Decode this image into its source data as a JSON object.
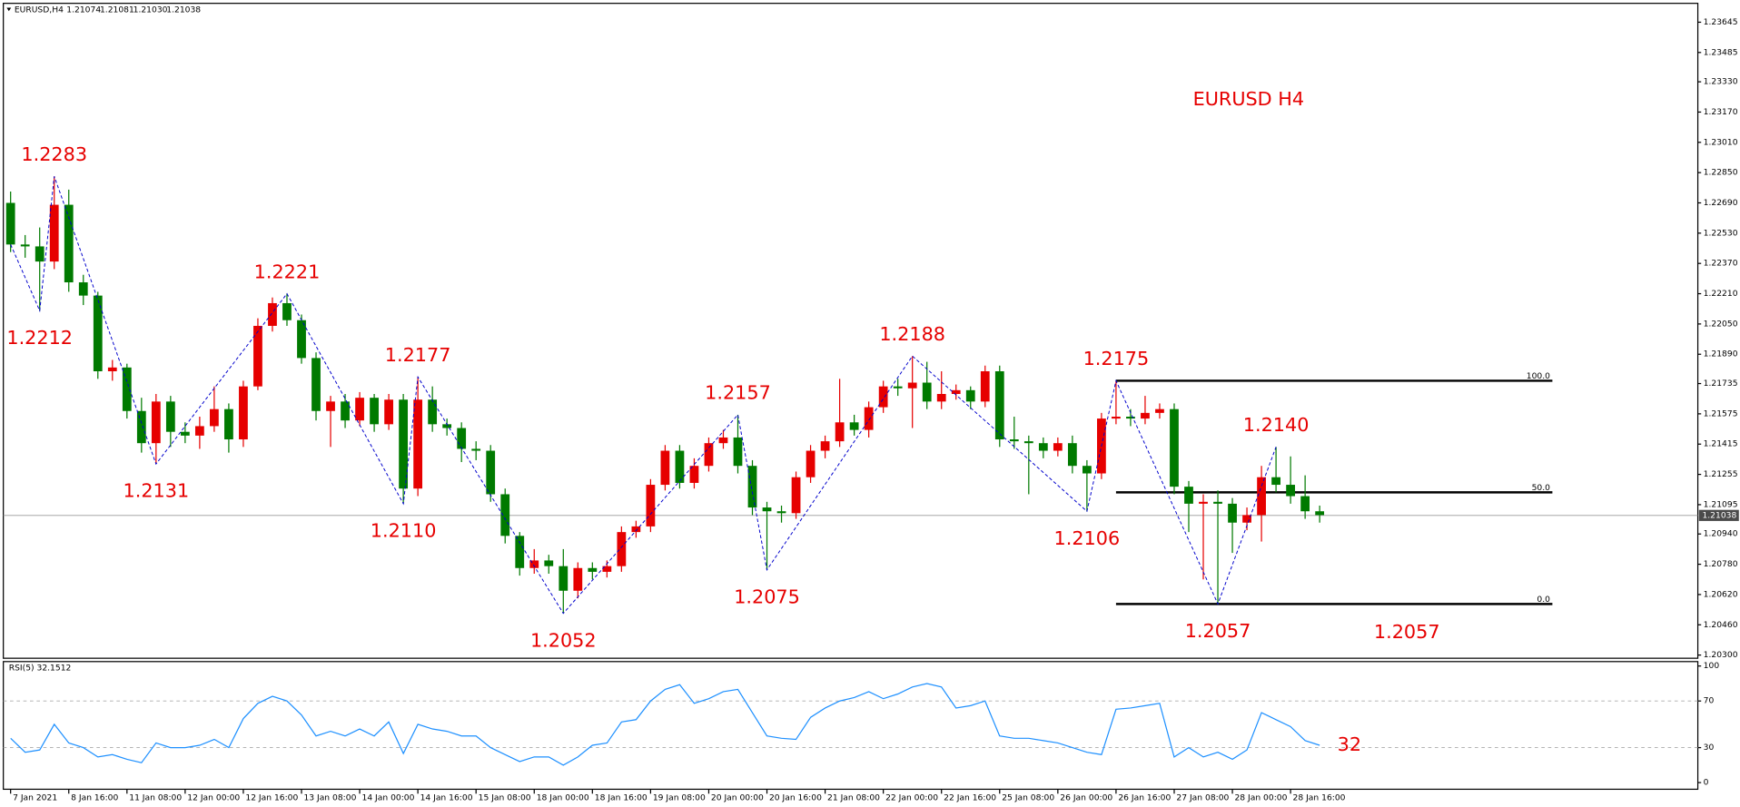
{
  "header": {
    "symbol": "EURUSD,H4",
    "quote": [
      "1.21074",
      "1.21081",
      "1.21030",
      "1.21038"
    ]
  },
  "chart_data": {
    "type": "candlestick",
    "title": "EURUSD H4",
    "categories": [
      "7 Jan 2021",
      null,
      null,
      null,
      "8 Jan 16:00",
      null,
      null,
      null,
      "11 Jan 08:00",
      null,
      null,
      null,
      "12 Jan 00:00",
      null,
      null,
      null,
      "12 Jan 16:00",
      null,
      null,
      null,
      "13 Jan 08:00",
      null,
      null,
      null,
      "14 Jan 00:00",
      null,
      null,
      null,
      "14 Jan 16:00",
      null,
      null,
      null,
      "15 Jan 08:00",
      null,
      null,
      null,
      "18 Jan 00:00",
      null,
      null,
      null,
      "18 Jan 16:00",
      null,
      null,
      null,
      "19 Jan 08:00",
      null,
      null,
      null,
      "20 Jan 00:00",
      null,
      null,
      null,
      "20 Jan 16:00",
      null,
      null,
      null,
      "21 Jan 08:00",
      null,
      null,
      null,
      "22 Jan 00:00",
      null,
      null,
      null,
      "22 Jan 16:00",
      null,
      null,
      null,
      "25 Jan 08:00",
      null,
      null,
      null,
      "26 Jan 00:00",
      null,
      null,
      null,
      "26 Jan 16:00",
      null,
      null,
      null,
      "27 Jan 08:00",
      null,
      null,
      null,
      "28 Jan 00:00",
      null,
      null,
      null,
      "28 Jan 16:00",
      null,
      null
    ],
    "open": [
      1.2269,
      1.2247,
      1.2246,
      1.2238,
      1.2268,
      1.2227,
      1.222,
      1.218,
      1.2182,
      1.2159,
      1.2142,
      1.2164,
      1.2148,
      1.2146,
      1.2151,
      1.216,
      1.2144,
      1.2172,
      1.2204,
      1.2216,
      1.2207,
      1.2187,
      1.2159,
      1.2164,
      1.2154,
      1.2166,
      1.2152,
      1.2165,
      1.2118,
      1.2165,
      1.2152,
      1.215,
      1.2139,
      1.2138,
      1.2115,
      1.2093,
      1.2076,
      1.208,
      1.2077,
      1.2064,
      1.2076,
      1.2074,
      1.2077,
      1.2095,
      1.2098,
      1.212,
      1.2138,
      1.2121,
      1.213,
      1.2142,
      1.2145,
      1.213,
      1.2108,
      1.2106,
      1.2105,
      1.2124,
      1.2138,
      1.2143,
      1.2153,
      1.2149,
      1.2161,
      1.2172,
      1.2171,
      1.2174,
      1.2164,
      1.2168,
      1.217,
      1.2164,
      1.218,
      1.2144,
      1.2143,
      1.2142,
      1.2138,
      1.2142,
      1.213,
      1.2126,
      1.2155,
      1.2156,
      1.2155,
      1.2158,
      1.216,
      1.2119,
      1.211,
      1.2111,
      1.211,
      1.21,
      1.2104,
      1.2124,
      1.212,
      1.2114,
      1.2106
    ],
    "high": [
      1.2275,
      1.2252,
      1.2256,
      1.2283,
      1.2276,
      1.2231,
      1.2222,
      1.2186,
      1.2184,
      1.2166,
      1.2168,
      1.2167,
      1.2153,
      1.2156,
      1.2172,
      1.2163,
      1.2175,
      1.2208,
      1.2219,
      1.2221,
      1.221,
      1.219,
      1.2167,
      1.2168,
      1.2169,
      1.2168,
      1.2168,
      1.2168,
      1.2177,
      1.2172,
      1.2155,
      1.2153,
      1.2143,
      1.2141,
      1.2118,
      1.2095,
      1.2086,
      1.2083,
      1.2086,
      1.2079,
      1.2079,
      1.208,
      1.2098,
      1.2101,
      1.2123,
      1.2141,
      1.2141,
      1.2134,
      1.2145,
      1.2149,
      1.2157,
      1.2133,
      1.2111,
      1.2109,
      1.2127,
      1.2141,
      1.2146,
      1.2176,
      1.2157,
      1.2164,
      1.2175,
      1.2176,
      1.2188,
      1.2185,
      1.218,
      1.2173,
      1.2172,
      1.2183,
      1.2183,
      1.2156,
      1.2146,
      1.2145,
      1.2145,
      1.2146,
      1.2133,
      1.2158,
      1.2175,
      1.216,
      1.2167,
      1.2163,
      1.2163,
      1.2122,
      1.2115,
      1.2117,
      1.2113,
      1.2108,
      1.213,
      1.214,
      1.2135,
      1.2125,
      1.2109
    ],
    "low": [
      1.2243,
      1.224,
      1.2212,
      1.2234,
      1.2222,
      1.2215,
      1.2176,
      1.2175,
      1.2155,
      1.2137,
      1.2131,
      1.214,
      1.2142,
      1.2139,
      1.2148,
      1.2137,
      1.214,
      1.217,
      1.2201,
      1.2204,
      1.2184,
      1.2154,
      1.214,
      1.215,
      1.2151,
      1.2148,
      1.2149,
      1.211,
      1.2114,
      1.2148,
      1.2146,
      1.2132,
      1.2133,
      1.2111,
      1.2089,
      1.2072,
      1.2073,
      1.2073,
      1.2052,
      1.206,
      1.207,
      1.2071,
      1.2074,
      1.2092,
      1.2095,
      1.2117,
      1.2118,
      1.2118,
      1.2127,
      1.2139,
      1.2126,
      1.2104,
      1.2075,
      1.21,
      1.2102,
      1.2121,
      1.2134,
      1.214,
      1.2146,
      1.2145,
      1.2158,
      1.2167,
      1.215,
      1.216,
      1.216,
      1.2165,
      1.216,
      1.2161,
      1.214,
      1.2139,
      1.2115,
      1.2134,
      1.2135,
      1.2126,
      1.2106,
      1.2123,
      1.2152,
      1.2151,
      1.2152,
      1.2155,
      1.2115,
      1.2095,
      1.207,
      1.2057,
      1.2084,
      1.2096,
      1.209,
      1.2116,
      1.211,
      1.2102,
      1.21
    ],
    "close": [
      1.2247,
      1.2246,
      1.2238,
      1.2268,
      1.2227,
      1.222,
      1.218,
      1.2182,
      1.2159,
      1.2142,
      1.2164,
      1.2148,
      1.2146,
      1.2151,
      1.216,
      1.2144,
      1.2172,
      1.2204,
      1.2216,
      1.2207,
      1.2187,
      1.2159,
      1.2164,
      1.2154,
      1.2166,
      1.2152,
      1.2165,
      1.2118,
      1.2165,
      1.2152,
      1.215,
      1.2139,
      1.2138,
      1.2115,
      1.2093,
      1.2076,
      1.208,
      1.2077,
      1.2064,
      1.2076,
      1.2074,
      1.2077,
      1.2095,
      1.2098,
      1.212,
      1.2138,
      1.2121,
      1.213,
      1.2142,
      1.2145,
      1.213,
      1.2108,
      1.2106,
      1.2105,
      1.2124,
      1.2138,
      1.2143,
      1.2153,
      1.2149,
      1.2161,
      1.2172,
      1.2171,
      1.2174,
      1.2164,
      1.2168,
      1.217,
      1.2164,
      1.218,
      1.2144,
      1.2143,
      1.2142,
      1.2138,
      1.2142,
      1.213,
      1.2126,
      1.2155,
      1.2156,
      1.2155,
      1.2158,
      1.216,
      1.2119,
      1.211,
      1.2111,
      1.211,
      1.21,
      1.2104,
      1.2124,
      1.212,
      1.2114,
      1.2106,
      1.2104
    ],
    "up_color": "#e60000",
    "down_color": "#007a00",
    "xlim": [
      -0.5,
      116
    ],
    "ylim": [
      1.20289,
      1.23733
    ],
    "yticks": [
      {
        "value": 1.23645,
        "label": "1.23645"
      },
      {
        "value": 1.23485,
        "label": "1.23485"
      },
      {
        "value": 1.2333,
        "label": "1.23330"
      },
      {
        "value": 1.2317,
        "label": "1.23170"
      },
      {
        "value": 1.2301,
        "label": "1.23010"
      },
      {
        "value": 1.2285,
        "label": "1.22850"
      },
      {
        "value": 1.2269,
        "label": "1.22690"
      },
      {
        "value": 1.2253,
        "label": "1.22530"
      },
      {
        "value": 1.2237,
        "label": "1.22370"
      },
      {
        "value": 1.2221,
        "label": "1.22210"
      },
      {
        "value": 1.2205,
        "label": "1.22050"
      },
      {
        "value": 1.2189,
        "label": "1.21890"
      },
      {
        "value": 1.21735,
        "label": "1.21735"
      },
      {
        "value": 1.21575,
        "label": "1.21575"
      },
      {
        "value": 1.21415,
        "label": "1.21415"
      },
      {
        "value": 1.21255,
        "label": "1.21255"
      },
      {
        "value": 1.21095,
        "label": "1.21095"
      },
      {
        "value": 1.2094,
        "label": "1.20940"
      },
      {
        "value": 1.2078,
        "label": "1.20780"
      },
      {
        "value": 1.2062,
        "label": "1.20620"
      },
      {
        "value": 1.2046,
        "label": "1.20460"
      },
      {
        "value": 1.203,
        "label": "1.20300"
      }
    ],
    "current_price": {
      "value": 1.21038,
      "label": "1.21038"
    },
    "zigzag": {
      "color": "#0000cc",
      "x": [
        0,
        2,
        3,
        10,
        19,
        27,
        28,
        38,
        50,
        52,
        62,
        74,
        76,
        83,
        87
      ],
      "values": [
        1.2247,
        1.2212,
        1.2283,
        1.2131,
        1.2221,
        1.211,
        1.2177,
        1.2052,
        1.2157,
        1.2075,
        1.2188,
        1.2106,
        1.2175,
        1.2057,
        1.214
      ],
      "labels": [
        null,
        "1.2212",
        "1.2283",
        "1.2131",
        "1.2221",
        "1.2110",
        "1.2177",
        "1.2052",
        "1.2157",
        "1.2075",
        "1.2188",
        "1.2106",
        "1.2175",
        "1.2057",
        "1.2140"
      ]
    },
    "fibo": {
      "x": [
        76,
        106
      ],
      "levels": [
        {
          "value": 1.2175,
          "label": "100.0"
        },
        {
          "value": 1.2116,
          "label": "50.0"
        },
        {
          "value": 1.2057,
          "label": "0.0"
        }
      ]
    },
    "annotations": [
      {
        "text": "1.2057",
        "x": 96,
        "y": 1.2057
      }
    ],
    "rsi": {
      "type": "line",
      "label": "RSI(5) 32.1512",
      "color": "#1e90ff",
      "end_label": "32",
      "ylim": [
        0,
        100
      ],
      "yticks": [
        0,
        30,
        70,
        100
      ],
      "values": [
        38,
        26,
        28,
        50,
        34,
        30,
        22,
        24,
        20,
        17,
        34,
        30,
        30,
        32,
        37,
        30,
        55,
        68,
        74,
        70,
        58,
        40,
        44,
        40,
        46,
        40,
        52,
        25,
        50,
        46,
        44,
        40,
        40,
        30,
        24,
        18,
        22,
        22,
        15,
        22,
        32,
        34,
        52,
        54,
        70,
        80,
        84,
        68,
        72,
        78,
        80,
        60,
        40,
        38,
        37,
        56,
        64,
        70,
        73,
        78,
        72,
        76,
        82,
        85,
        82,
        64,
        66,
        70,
        40,
        38,
        38,
        36,
        34,
        30,
        26,
        24,
        63,
        64,
        66,
        68,
        22,
        30,
        22,
        26,
        20,
        28,
        60,
        54,
        48,
        36,
        32
      ]
    }
  }
}
